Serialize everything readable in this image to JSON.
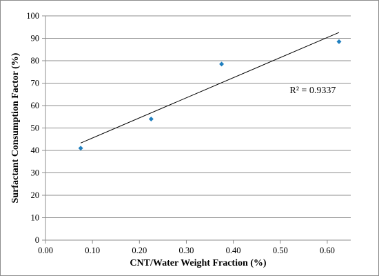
{
  "chart_data": {
    "type": "scatter",
    "title": "",
    "xlabel": "CNT/Water Weight Fraction (%)",
    "ylabel": "Surfactant Consumption Factor  (%)",
    "xlim": [
      0.0,
      0.65
    ],
    "ylim": [
      0,
      100
    ],
    "x_ticks": [
      "0.00",
      "0.10",
      "0.20",
      "0.30",
      "0.40",
      "0.50",
      "0.60"
    ],
    "y_ticks": [
      "0",
      "10",
      "20",
      "30",
      "40",
      "50",
      "60",
      "70",
      "80",
      "90",
      "100"
    ],
    "grid": "horizontal",
    "legend": "none",
    "series": [
      {
        "x": [
          0.075,
          0.225,
          0.375,
          0.625
        ],
        "y": [
          41,
          54,
          78.5,
          88.5
        ],
        "marker": "diamond",
        "color": "#1f7fbf"
      }
    ],
    "trendline": {
      "type": "linear",
      "x_start": 0.075,
      "y_start": 43.3,
      "x_end": 0.625,
      "y_end": 92.6,
      "color": "#000000"
    },
    "annotations": [
      {
        "text": "R² = 0.9337",
        "x": 0.52,
        "y": 65.5
      }
    ]
  }
}
